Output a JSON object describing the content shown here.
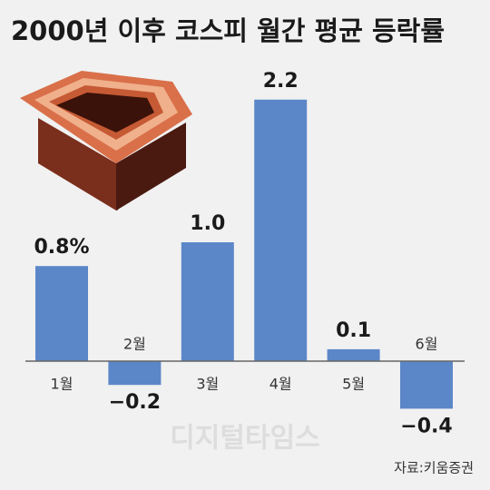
{
  "chart_data": {
    "type": "bar",
    "title": "2000년 이후 코스피 월간 평균 등락률",
    "categories": [
      "1월",
      "2월",
      "3월",
      "4월",
      "5월",
      "6월"
    ],
    "values": [
      0.8,
      -0.2,
      1.0,
      2.2,
      0.1,
      -0.4
    ],
    "value_labels": [
      "0.8%",
      "−0.2",
      "1.0",
      "2.2",
      "0.1",
      "−0.4"
    ],
    "color": "#5b87c9",
    "source": "자료:키움증권",
    "watermark": "디지털타임스"
  }
}
